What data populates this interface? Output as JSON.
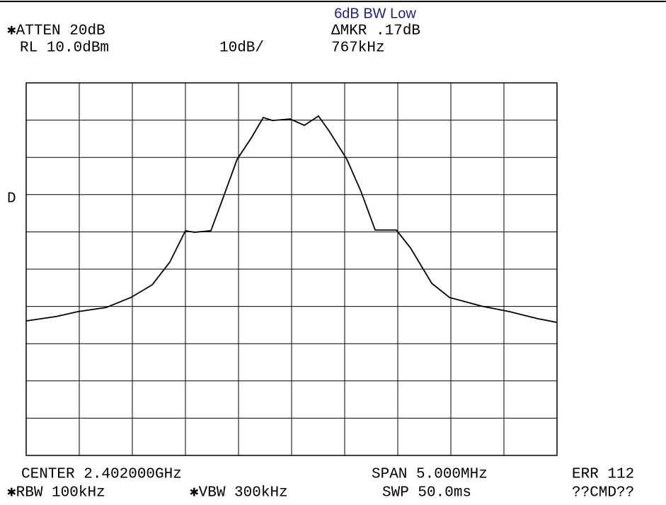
{
  "chart_data": {
    "type": "line",
    "title": "6dB BW Low",
    "annotations": [
      "✱ATTEN 20dB",
      "RL 10.0dBm",
      "10dB/",
      "ΔMKR .17dB",
      "767kHz",
      "D",
      "CENTER 2.402000GHz",
      "SPAN 5.000MHz",
      "ERR 112",
      "✱RBW 100kHz",
      "✱VBW 300kHz",
      "SWP 50.0ms",
      "??CMD??"
    ],
    "x": [
      2.3995,
      2.399787,
      2.399987,
      2.400253,
      2.400487,
      2.400687,
      2.400853,
      2.401,
      2.401087,
      2.40124,
      2.401353,
      2.401487,
      2.40162,
      2.401733,
      2.40182,
      2.401987,
      2.40212,
      2.402253,
      2.402353,
      2.40252,
      2.402653,
      2.402787,
      2.402987,
      2.40312,
      2.40332,
      2.403487,
      2.403787,
      2.404053,
      2.40432,
      2.4045
    ],
    "series": [
      {
        "color": "#000000",
        "values": [
          -53.9,
          -52.7,
          -51.4,
          -50.3,
          -47.6,
          -44.2,
          -38.1,
          -29.7,
          -30.1,
          -29.7,
          -21.0,
          -10.5,
          -4.8,
          0.7,
          -0.1,
          0.3,
          -1.4,
          1.1,
          -2.9,
          -10.5,
          -19.1,
          -29.5,
          -29.5,
          -34.3,
          -43.8,
          -47.6,
          -49.9,
          -51.4,
          -53.3,
          -54.3
        ]
      }
    ],
    "xlim": [
      2.3995,
      2.4045
    ],
    "ylim": [
      -90,
      10
    ],
    "grid": true
  }
}
